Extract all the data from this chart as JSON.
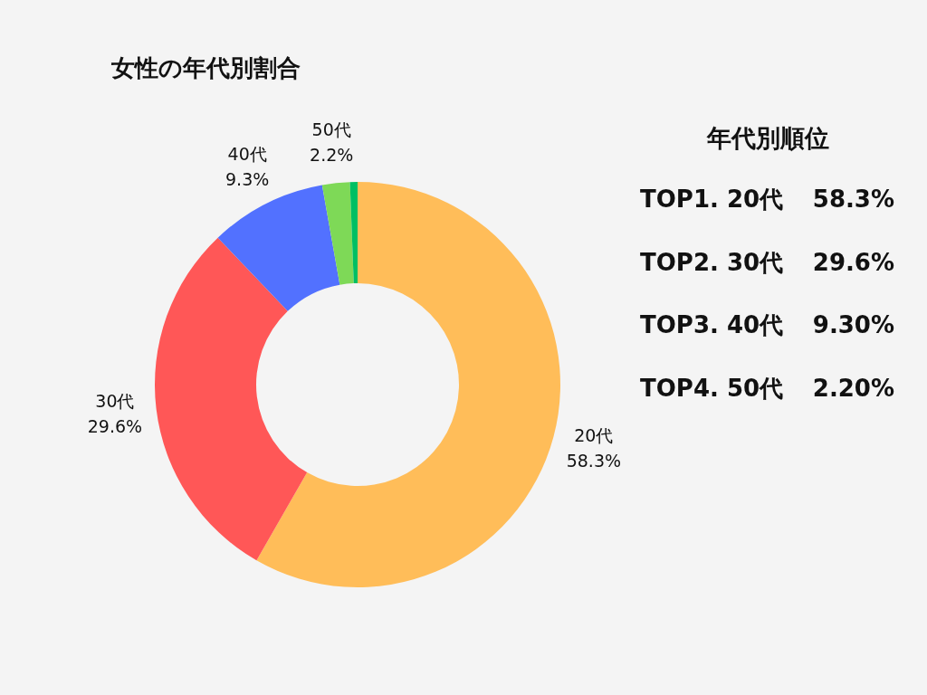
{
  "chart_data": [
    {
      "type": "donut",
      "title": "女性の年代別割合",
      "categories": [
        "20代",
        "30代",
        "40代",
        "50代",
        null
      ],
      "values": [
        58.3,
        29.6,
        9.3,
        2.2,
        0.6
      ],
      "colors": [
        "#ffbd59",
        "#ff5757",
        "#5271ff",
        "#7ed957",
        "#00bf63"
      ],
      "value_labels": [
        "58.3%",
        "29.6%",
        "9.3%",
        "2.2%",
        null
      ],
      "legend": false
    },
    {
      "type": "other",
      "title": "年代別順位",
      "annotations": [
        "TOP1. 20代",
        "58.3%",
        "TOP2. 30代",
        "29.6%",
        "TOP3. 40代",
        "9.30%",
        "TOP4. 50代",
        "2.20%"
      ]
    }
  ]
}
